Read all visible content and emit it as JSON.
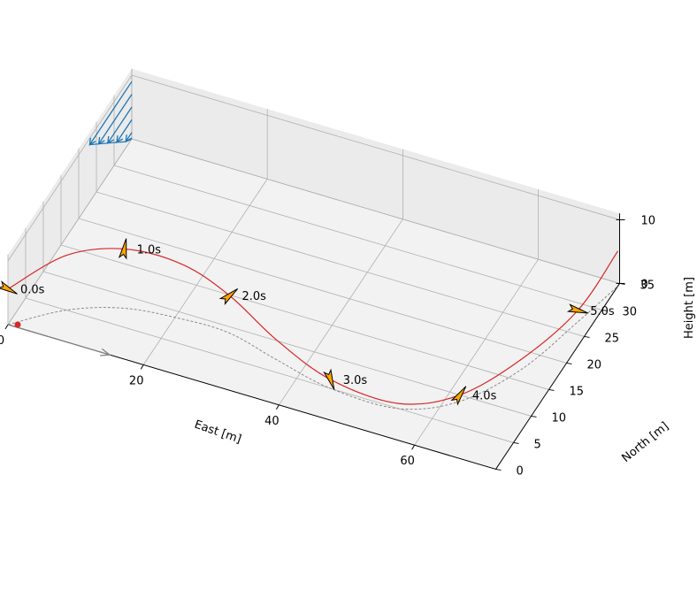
{
  "chart_data": {
    "type": "line3d",
    "title": "",
    "xlabel": "East [m]",
    "ylabel": "North [m]",
    "zlabel": "Height [m]",
    "xlim": [
      0,
      72
    ],
    "ylim": [
      0,
      35
    ],
    "zlim": [
      0,
      11
    ],
    "x_ticks": [
      "0",
      "20",
      "40",
      "60"
    ],
    "y_ticks": [
      "0",
      "5",
      "10",
      "15",
      "20",
      "25",
      "30",
      "35"
    ],
    "z_ticks": [
      "0",
      "10"
    ],
    "grid": true,
    "colors": {
      "trajectory": "#d62728",
      "ground_track": "#808080",
      "wind_profile": "#1f77b4",
      "glider_fill": "#ffa500",
      "wind_arrow": "#808080",
      "pane_floor": "#f2f2f2",
      "pane_wall": "#ebebeb",
      "grid": "#b0b0b0"
    },
    "trajectory": [
      {
        "t": 0.0,
        "east": 0.0,
        "north": 0.0,
        "height": 5.6
      },
      {
        "t": 0.5,
        "east": 6.0,
        "north": 5.0,
        "height": 8.6
      },
      {
        "t": 1.0,
        "east": 13.0,
        "north": 8.0,
        "height": 9.3
      },
      {
        "t": 1.5,
        "east": 21.0,
        "north": 9.0,
        "height": 8.6
      },
      {
        "t": 2.0,
        "east": 28.0,
        "north": 9.0,
        "height": 5.9
      },
      {
        "t": 2.5,
        "east": 36.0,
        "north": 7.0,
        "height": 3.1
      },
      {
        "t": 3.0,
        "east": 45.0,
        "north": 5.0,
        "height": 1.4
      },
      {
        "t": 3.5,
        "east": 55.0,
        "north": 5.0,
        "height": 0.8
      },
      {
        "t": 4.0,
        "east": 62.0,
        "north": 9.0,
        "height": 1.0
      },
      {
        "t": 4.5,
        "east": 67.0,
        "north": 17.0,
        "height": 1.6
      },
      {
        "t": 5.0,
        "east": 70.0,
        "north": 27.0,
        "height": 1.8
      },
      {
        "t": 5.4,
        "east": 72.0,
        "north": 34.5,
        "height": 5.5
      }
    ],
    "time_labels": [
      {
        "t": 0.0,
        "label": "0.0s"
      },
      {
        "t": 1.0,
        "label": "1.0s"
      },
      {
        "t": 2.0,
        "label": "2.0s"
      },
      {
        "t": 3.0,
        "label": "3.0s"
      },
      {
        "t": 4.0,
        "label": "4.0s"
      },
      {
        "t": 5.0,
        "label": "5.0s"
      }
    ],
    "wind_profile": [
      {
        "height": 1,
        "speed": 2
      },
      {
        "height": 3,
        "speed": 5
      },
      {
        "height": 5,
        "speed": 8
      },
      {
        "height": 7,
        "speed": 11
      },
      {
        "height": 9,
        "speed": 14
      }
    ],
    "wind_direction_arrow": {
      "east": 0,
      "north": 0,
      "height": 0,
      "length": 15
    }
  }
}
